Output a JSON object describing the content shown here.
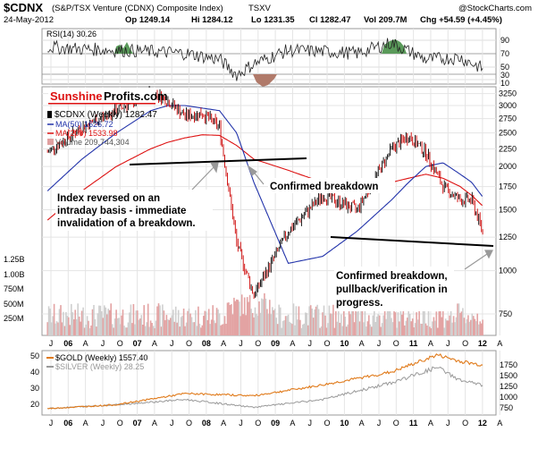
{
  "header": {
    "symbol": "$CDNX",
    "name": "(S&P/TSX Venture (CDNX) Composite Index)",
    "exchange": "TSXV",
    "copyright": "@StockCharts.com",
    "date": "24-May-2012",
    "open": "Op 1249.14",
    "high": "Hi 1284.12",
    "low": "Lo 1231.35",
    "close": "Cl 1282.47",
    "volume": "Vol 209.7M",
    "change": "Chg +54.59 (+4.45%)"
  },
  "rsi": {
    "label": "RSI(14) 30.26",
    "ticks": [
      "90",
      "70",
      "50",
      "30",
      "10"
    ],
    "colors": {
      "overbought": "#5a9a5a",
      "oversold": "#b07a6a",
      "line": "#222222"
    }
  },
  "logo": {
    "part1": "Sunshine",
    "part2": "Profits.com"
  },
  "main": {
    "legend": {
      "series": "$CDNX (Weekly) 1282.47",
      "ma50": "MA(50) 1626.72",
      "ma200": "MA(200) 1533.98",
      "volume": "Volume 209,744,304"
    },
    "price_ticks": [
      "3250",
      "3000",
      "2750",
      "2500",
      "2250",
      "2000",
      "1750",
      "1500",
      "1250",
      "1000",
      "750"
    ],
    "volume_ticks": [
      "1.25B",
      "1.00B",
      "750M",
      "500M",
      "250M"
    ],
    "annotations": {
      "a1": [
        "Index reversed on an",
        "intraday basis - immediate",
        "invalidation of a breakdown."
      ],
      "a2": "Confirmed breakdown",
      "a3": [
        "Confirmed breakdown,",
        "pullback/verification in",
        "progress."
      ]
    },
    "colors": {
      "price_up": "#000000",
      "price_down": "#cc0000",
      "ma50": "#2233aa",
      "ma200": "#dd1111",
      "volume": "#e0a0a0",
      "trendline": "#000000"
    }
  },
  "x_axis_labels": [
    "J",
    "06",
    "A",
    "J",
    "O",
    "07",
    "A",
    "J",
    "O",
    "08",
    "A",
    "J",
    "O",
    "09",
    "A",
    "J",
    "O",
    "10",
    "A",
    "J",
    "O",
    "11",
    "A",
    "J",
    "O",
    "12",
    "A"
  ],
  "gold_panel": {
    "legend_gold": "$GOLD (Weekly) 1557.40",
    "legend_silver": "$SILVER (Weekly) 28.25",
    "left_ticks": [
      "50",
      "40",
      "30",
      "20"
    ],
    "right_ticks": [
      "1750",
      "1500",
      "1250",
      "1000",
      "750"
    ],
    "colors": {
      "gold": "#e07a1a",
      "silver": "#999999"
    }
  },
  "chart_data": [
    {
      "type": "line",
      "title": "$CDNX (S&P/TSX Venture (CDNX) Composite Index) TSXV",
      "x": [
        "2006-01",
        "2006-07",
        "2007-01",
        "2007-07",
        "2007-10",
        "2008-01",
        "2008-04",
        "2008-07",
        "2008-10",
        "2009-01",
        "2009-07",
        "2010-01",
        "2010-07",
        "2011-01",
        "2011-04",
        "2011-07",
        "2011-10",
        "2012-01",
        "2012-03",
        "2012-05"
      ],
      "series": [
        {
          "name": "$CDNX (Weekly)",
          "values": [
            2200,
            2600,
            2900,
            3300,
            3100,
            2800,
            2850,
            2600,
            1200,
            850,
            1300,
            1650,
            1500,
            2250,
            2450,
            2200,
            1750,
            1600,
            1600,
            1282
          ]
        },
        {
          "name": "MA(50)",
          "values": [
            1700,
            2100,
            2500,
            2900,
            3000,
            3000,
            2950,
            2900,
            2500,
            1800,
            1050,
            1100,
            1300,
            1600,
            1800,
            2000,
            2050,
            1900,
            1800,
            1627
          ]
        },
        {
          "name": "MA(200)",
          "values": [
            1400,
            1700,
            2000,
            2250,
            2350,
            2420,
            2470,
            2460,
            2300,
            2100,
            1950,
            1800,
            1750,
            1800,
            1850,
            1900,
            1850,
            1750,
            1650,
            1534
          ]
        }
      ],
      "ylim": [
        650,
        3400
      ],
      "y_scale": "log"
    },
    {
      "type": "line",
      "title": "RSI(14)",
      "x": [
        "2006-01",
        "2006-07",
        "2007-01",
        "2007-07",
        "2008-01",
        "2008-07",
        "2008-10",
        "2009-01",
        "2009-07",
        "2010-01",
        "2010-07",
        "2011-01",
        "2011-07",
        "2012-01",
        "2012-05"
      ],
      "series": [
        {
          "name": "RSI(14)",
          "values": [
            65,
            62,
            60,
            58,
            55,
            45,
            20,
            38,
            60,
            58,
            55,
            72,
            45,
            48,
            30
          ]
        }
      ],
      "ylim": [
        5,
        95
      ]
    },
    {
      "type": "line",
      "title": "$GOLD / $SILVER",
      "x": [
        "2006-01",
        "2007-01",
        "2008-01",
        "2009-01",
        "2010-01",
        "2011-01",
        "2011-09",
        "2012-01",
        "2012-05"
      ],
      "series": [
        {
          "name": "$GOLD (Weekly)",
          "values": [
            550,
            640,
            900,
            850,
            1100,
            1400,
            1800,
            1650,
            1557
          ]
        },
        {
          "name": "$SILVER (Weekly)",
          "values": [
            10,
            13,
            17,
            11,
            17,
            30,
            42,
            32,
            28
          ]
        }
      ]
    }
  ]
}
